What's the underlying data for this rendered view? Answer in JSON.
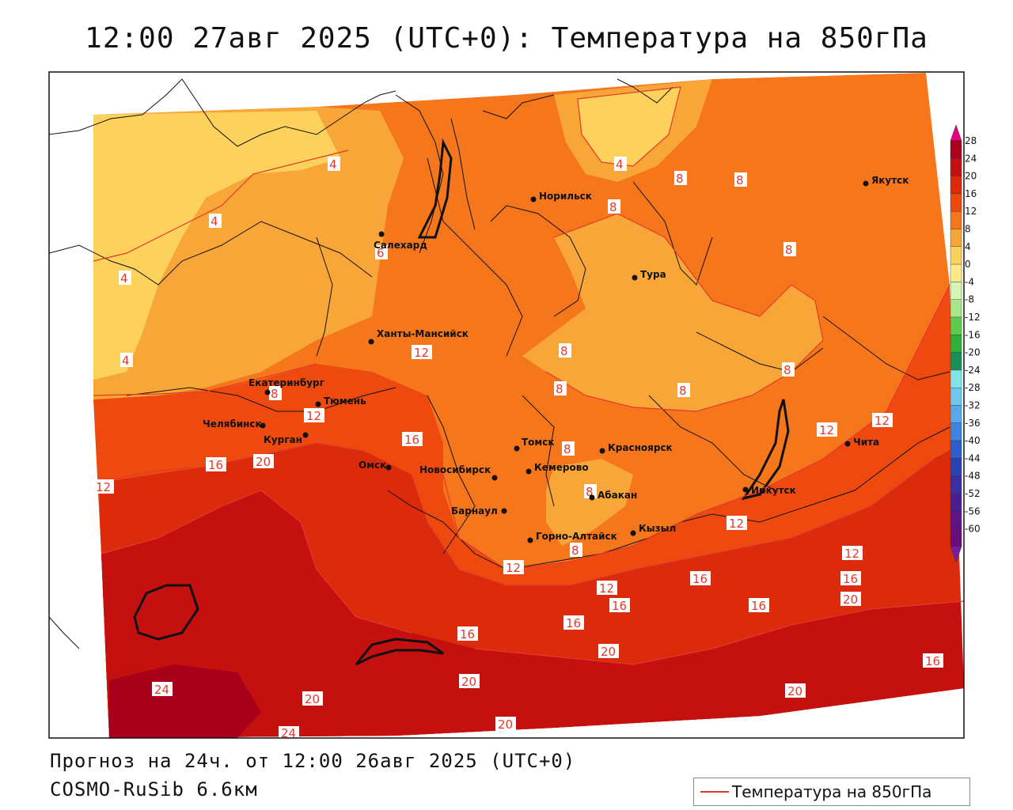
{
  "header": {
    "title": "12:00 27авг 2025 (UTC+0): Температура на 850гПа"
  },
  "footer": {
    "forecast": "Прогноз на 24ч. от 12:00 26авг 2025 (UTC+0)",
    "model": "COSMO-RuSib 6.6км"
  },
  "legend": {
    "label": "Температура на 850гПа",
    "line_color": "#e23a2a"
  },
  "colorbar": {
    "ticks": [
      "28",
      "24",
      "20",
      "16",
      "12",
      "8",
      "4",
      "0",
      "-4",
      "-8",
      "-12",
      "-16",
      "-20",
      "-24",
      "-28",
      "-32",
      "-36",
      "-40",
      "-44",
      "-48",
      "-52",
      "-56",
      "-60"
    ],
    "colors": [
      "#a8001a",
      "#c4100f",
      "#dc2a0c",
      "#ee4a10",
      "#f6761c",
      "#f9a638",
      "#fcd25c",
      "#fde98a",
      "#d4f5b4",
      "#a6e88a",
      "#5ccc4c",
      "#2eb03a",
      "#189058",
      "#82e4e8",
      "#6ccaf2",
      "#58a8ec",
      "#3c84e2",
      "#2c5ed0",
      "#2844b4",
      "#3a30a2",
      "#4c1e94",
      "#5c1488",
      "#6a0e7c"
    ],
    "top_color": "#e8007e",
    "bottom_color": "#7a1ca0"
  },
  "cities": [
    {
      "name": "Якутск"
    },
    {
      "name": "Норильск"
    },
    {
      "name": "Салехард"
    },
    {
      "name": "Тура"
    },
    {
      "name": "Ханты-Мансийск"
    },
    {
      "name": "Екатеринбург"
    },
    {
      "name": "Тюмень"
    },
    {
      "name": "Челябинск"
    },
    {
      "name": "Курган"
    },
    {
      "name": "Омск"
    },
    {
      "name": "Томск"
    },
    {
      "name": "Красноярск"
    },
    {
      "name": "Новосибирск"
    },
    {
      "name": "Кемерово"
    },
    {
      "name": "Абакан"
    },
    {
      "name": "Барнаул"
    },
    {
      "name": "Иркутск"
    },
    {
      "name": "Чита"
    },
    {
      "name": "Кызыл"
    },
    {
      "name": "Горно-Алтайск"
    }
  ],
  "contour_labels": [
    "4",
    "4",
    "4",
    "4",
    "4",
    "6",
    "8",
    "8",
    "8",
    "8",
    "8",
    "8",
    "8",
    "8",
    "8",
    "8",
    "8",
    "8",
    "12",
    "12",
    "12",
    "12",
    "12",
    "12",
    "12",
    "12",
    "12",
    "16",
    "16",
    "16",
    "16",
    "16",
    "16",
    "16",
    "16",
    "16",
    "16",
    "20",
    "20",
    "20",
    "20",
    "20",
    "20",
    "20",
    "24",
    "24"
  ]
}
